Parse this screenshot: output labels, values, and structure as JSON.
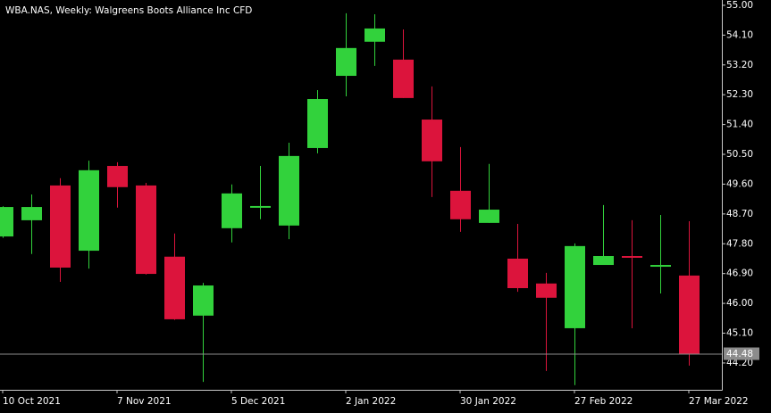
{
  "chart_data": {
    "type": "candlestick",
    "title": "WBA.NAS, Weekly:  Walgreens Boots Alliance Inc CFD",
    "categories": [
      "10 Oct 2021",
      null,
      null,
      null,
      "7 Nov 2021",
      null,
      null,
      null,
      "5 Dec 2021",
      null,
      null,
      null,
      "2 Jan 2022",
      null,
      null,
      null,
      "30 Jan 2022",
      null,
      null,
      null,
      "27 Feb 2022",
      null,
      null,
      null,
      "27 Mar 2022"
    ],
    "open": [
      48.02,
      48.51,
      49.56,
      47.59,
      50.15,
      49.56,
      47.41,
      45.63,
      48.27,
      48.89,
      48.35,
      50.69,
      52.87,
      53.9,
      53.36,
      51.55,
      49.4,
      48.43,
      47.35,
      46.6,
      45.25,
      47.16,
      47.43,
      47.11,
      46.84
    ],
    "high": [
      48.93,
      49.29,
      49.78,
      50.31,
      50.26,
      49.64,
      48.11,
      46.62,
      49.59,
      50.15,
      50.85,
      52.44,
      54.76,
      54.73,
      54.27,
      52.55,
      50.72,
      50.21,
      48.4,
      46.92,
      47.81,
      48.97,
      48.51,
      48.67,
      48.48
    ],
    "low": [
      47.98,
      47.49,
      46.65,
      47.05,
      48.89,
      46.87,
      45.5,
      43.63,
      47.84,
      48.54,
      47.94,
      50.53,
      52.25,
      53.17,
      52.2,
      49.21,
      48.16,
      48.43,
      46.35,
      43.96,
      43.53,
      47.16,
      45.25,
      46.3,
      44.12
    ],
    "close": [
      48.91,
      48.91,
      47.08,
      50.02,
      49.51,
      46.89,
      45.52,
      46.54,
      49.32,
      48.94,
      50.45,
      52.17,
      53.71,
      54.3,
      52.2,
      50.29,
      48.54,
      48.83,
      46.46,
      46.17,
      47.73,
      47.43,
      47.38,
      47.16,
      44.48
    ],
    "up_color": "#32d23c",
    "down_color": "#dc143c",
    "last_price": 44.48,
    "ylim": [
      43.39,
      55.16
    ],
    "yticks": [
      {
        "value": 55,
        "label": "55.00"
      },
      {
        "value": 54.1,
        "label": "54.10"
      },
      {
        "value": 53.2,
        "label": "53.20"
      },
      {
        "value": 52.3,
        "label": "52.30"
      },
      {
        "value": 51.4,
        "label": "51.40"
      },
      {
        "value": 50.5,
        "label": "50.50"
      },
      {
        "value": 49.6,
        "label": "49.60"
      },
      {
        "value": 48.7,
        "label": "48.70"
      },
      {
        "value": 47.8,
        "label": "47.80"
      },
      {
        "value": 46.9,
        "label": "46.90"
      },
      {
        "value": 46,
        "label": "46.00"
      },
      {
        "value": 45.1,
        "label": "45.10"
      },
      {
        "value": 44.2,
        "label": "44.20"
      }
    ]
  }
}
